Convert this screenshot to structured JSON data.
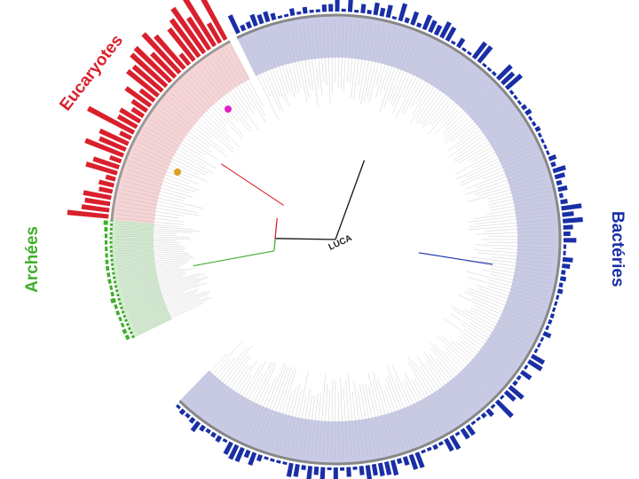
{
  "figure": {
    "root_label": "LUCA",
    "domains": [
      {
        "key": "bacteria",
        "label": "Bactéries",
        "color": "#1a2fa6",
        "shade": "#c9cbe6",
        "leaves": 118
      },
      {
        "key": "archaea",
        "label": "Archées",
        "color": "#3fae2a",
        "shade": "#d3ecd0",
        "leaves": 24
      },
      {
        "key": "eukaryota",
        "label": "Eucaryotes",
        "color": "#d9202c",
        "shade": "#f6d4d6",
        "leaves": 26
      }
    ],
    "markers": [
      {
        "name": "magenta-marker",
        "color": "#e020c8"
      },
      {
        "name": "orange-marker",
        "color": "#e0a020"
      }
    ]
  }
}
